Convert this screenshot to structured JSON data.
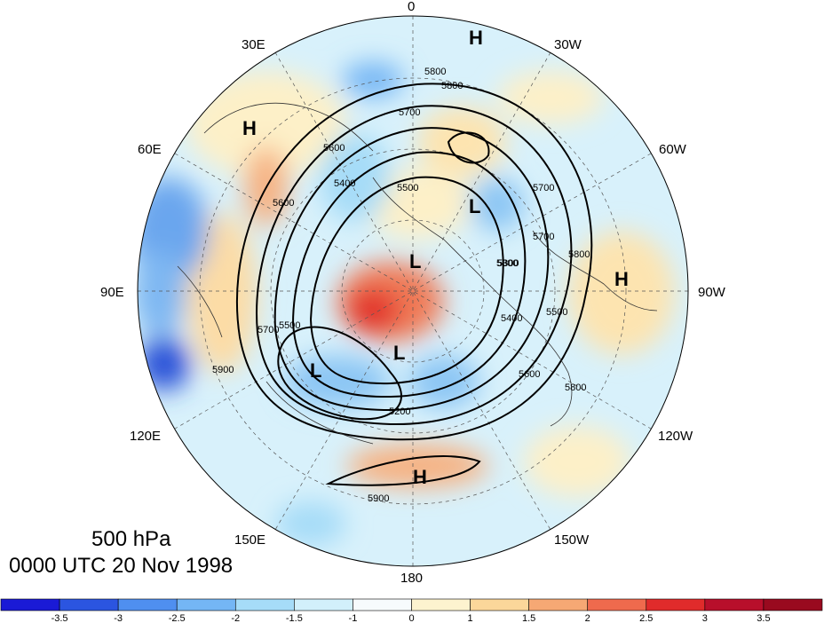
{
  "map": {
    "level_label": "500 hPa",
    "time_label": "0000 UTC 20 Nov 1998",
    "projection": "north polar stereographic",
    "field_shaded": "anomaly",
    "field_contoured": "geopotential height",
    "longitude_labels": {
      "top": "0",
      "upper_left": "30E",
      "upper_right": "30W",
      "left_high": "60E",
      "right_high": "60W",
      "left": "90E",
      "right": "90W",
      "left_low": "120E",
      "right_low": "120W",
      "lower_left": "150E",
      "lower_right": "150W",
      "bottom": "180"
    },
    "contour_labels": [
      "5800",
      "5800",
      "5700",
      "5600",
      "5500",
      "5400",
      "5300",
      "5200",
      "5600",
      "5700",
      "5500",
      "5400",
      "5600",
      "5700",
      "5800",
      "5900",
      "5900",
      "5300",
      "5500",
      "5800",
      "5700"
    ],
    "centers": [
      {
        "type": "H",
        "label": "H"
      },
      {
        "type": "H",
        "label": "H"
      },
      {
        "type": "H",
        "label": "H"
      },
      {
        "type": "H",
        "label": "H"
      },
      {
        "type": "L",
        "label": "L"
      },
      {
        "type": "L",
        "label": "L"
      },
      {
        "type": "L",
        "label": "L"
      },
      {
        "type": "L",
        "label": "L"
      }
    ]
  },
  "colorbar": {
    "ticks": [
      "-3.5",
      "-3",
      "-2.5",
      "-2",
      "-1.5",
      "-1",
      "0",
      "1",
      "1.5",
      "2",
      "2.5",
      "3",
      "3.5"
    ],
    "colors": [
      "#1a1ad6",
      "#2b55e0",
      "#4f8ff0",
      "#74b6f5",
      "#a6dcf8",
      "#d2f0fb",
      "#f7fbfd",
      "#fdf3cf",
      "#fbd79a",
      "#f6a874",
      "#ef6a4d",
      "#e02b2b",
      "#b80f2b",
      "#990a1f"
    ]
  }
}
